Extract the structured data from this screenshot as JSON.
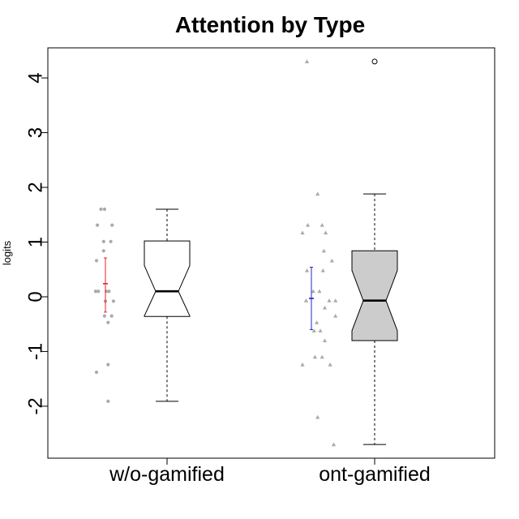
{
  "chart_data": {
    "type": "boxplot",
    "title": "Attention by Type",
    "xlabel": "",
    "ylabel": "logits",
    "categories": [
      "w/o-gamified",
      "ont-gamified"
    ],
    "yticks": [
      "-2",
      "-1",
      "0",
      "1",
      "2",
      "3",
      "4"
    ],
    "ylim": [
      -2.95,
      4.55
    ],
    "grid": false,
    "groups": [
      {
        "label": "w/o-gamified",
        "box_fill": "#ffffff",
        "ci_color": "#e8212a",
        "point_color": "#aaaaaa",
        "point_shape": "circle",
        "box": {
          "whisker_low": -1.91,
          "q1": -0.36,
          "median": 0.1,
          "q3": 1.02,
          "whisker_high": 1.6,
          "notch_low": -0.35,
          "notch_high": 0.57
        },
        "mean": 0.24,
        "ci_low": -0.28,
        "ci_high": 0.71,
        "outliers": [],
        "points": [
          {
            "x": -0.5,
            "y": 1.6
          },
          {
            "x": -0.1,
            "y": 1.6
          },
          {
            "x": -0.9,
            "y": 1.31
          },
          {
            "x": 0.75,
            "y": 1.31
          },
          {
            "x": -0.2,
            "y": 1.01
          },
          {
            "x": 0.6,
            "y": 1.01
          },
          {
            "x": -0.2,
            "y": 0.84
          },
          {
            "x": -1.0,
            "y": 0.66
          },
          {
            "x": -0.8,
            "y": 0.1
          },
          {
            "x": -1.1,
            "y": 0.1
          },
          {
            "x": 0.1,
            "y": 0.1
          },
          {
            "x": 0.4,
            "y": 0.1
          },
          {
            "x": 0.0,
            "y": -0.08
          },
          {
            "x": 0.9,
            "y": -0.08
          },
          {
            "x": -0.1,
            "y": -0.35
          },
          {
            "x": 0.7,
            "y": -0.35
          },
          {
            "x": 0.3,
            "y": -0.47
          },
          {
            "x": 0.3,
            "y": -1.24
          },
          {
            "x": -1.0,
            "y": -1.38
          },
          {
            "x": 0.3,
            "y": -1.91
          }
        ]
      },
      {
        "label": "ont-gamified",
        "box_fill": "#cccccc",
        "ci_color": "#2222cc",
        "point_color": "#aaaaaa",
        "point_shape": "triangle",
        "box": {
          "whisker_low": -2.7,
          "q1": -0.8,
          "median": -0.07,
          "q3": 0.84,
          "whisker_high": 1.88,
          "notch_low": -0.62,
          "notch_high": 0.48
        },
        "mean": -0.03,
        "ci_low": -0.6,
        "ci_high": 0.54,
        "outliers": [
          4.3
        ],
        "points": [
          {
            "x": -0.5,
            "y": 4.3
          },
          {
            "x": 0.7,
            "y": 1.88
          },
          {
            "x": -0.4,
            "y": 1.31
          },
          {
            "x": 1.2,
            "y": 1.31
          },
          {
            "x": -1.0,
            "y": 1.17
          },
          {
            "x": 1.6,
            "y": 1.17
          },
          {
            "x": 1.4,
            "y": 0.84
          },
          {
            "x": 2.3,
            "y": 0.66
          },
          {
            "x": -0.5,
            "y": 0.48
          },
          {
            "x": 1.3,
            "y": 0.48
          },
          {
            "x": 0.2,
            "y": 0.1
          },
          {
            "x": 0.9,
            "y": 0.1
          },
          {
            "x": -0.6,
            "y": -0.07
          },
          {
            "x": 2.0,
            "y": -0.07
          },
          {
            "x": 2.7,
            "y": -0.07
          },
          {
            "x": 1.5,
            "y": -0.2
          },
          {
            "x": 2.7,
            "y": -0.35
          },
          {
            "x": 0.6,
            "y": -0.47
          },
          {
            "x": 0.3,
            "y": -0.62
          },
          {
            "x": 1.0,
            "y": -0.62
          },
          {
            "x": 1.5,
            "y": -0.8
          },
          {
            "x": 0.4,
            "y": -1.1
          },
          {
            "x": 1.2,
            "y": -1.1
          },
          {
            "x": -1.0,
            "y": -1.24
          },
          {
            "x": 2.1,
            "y": -1.24
          },
          {
            "x": 0.7,
            "y": -2.2
          },
          {
            "x": 2.5,
            "y": -2.7
          }
        ]
      }
    ]
  }
}
